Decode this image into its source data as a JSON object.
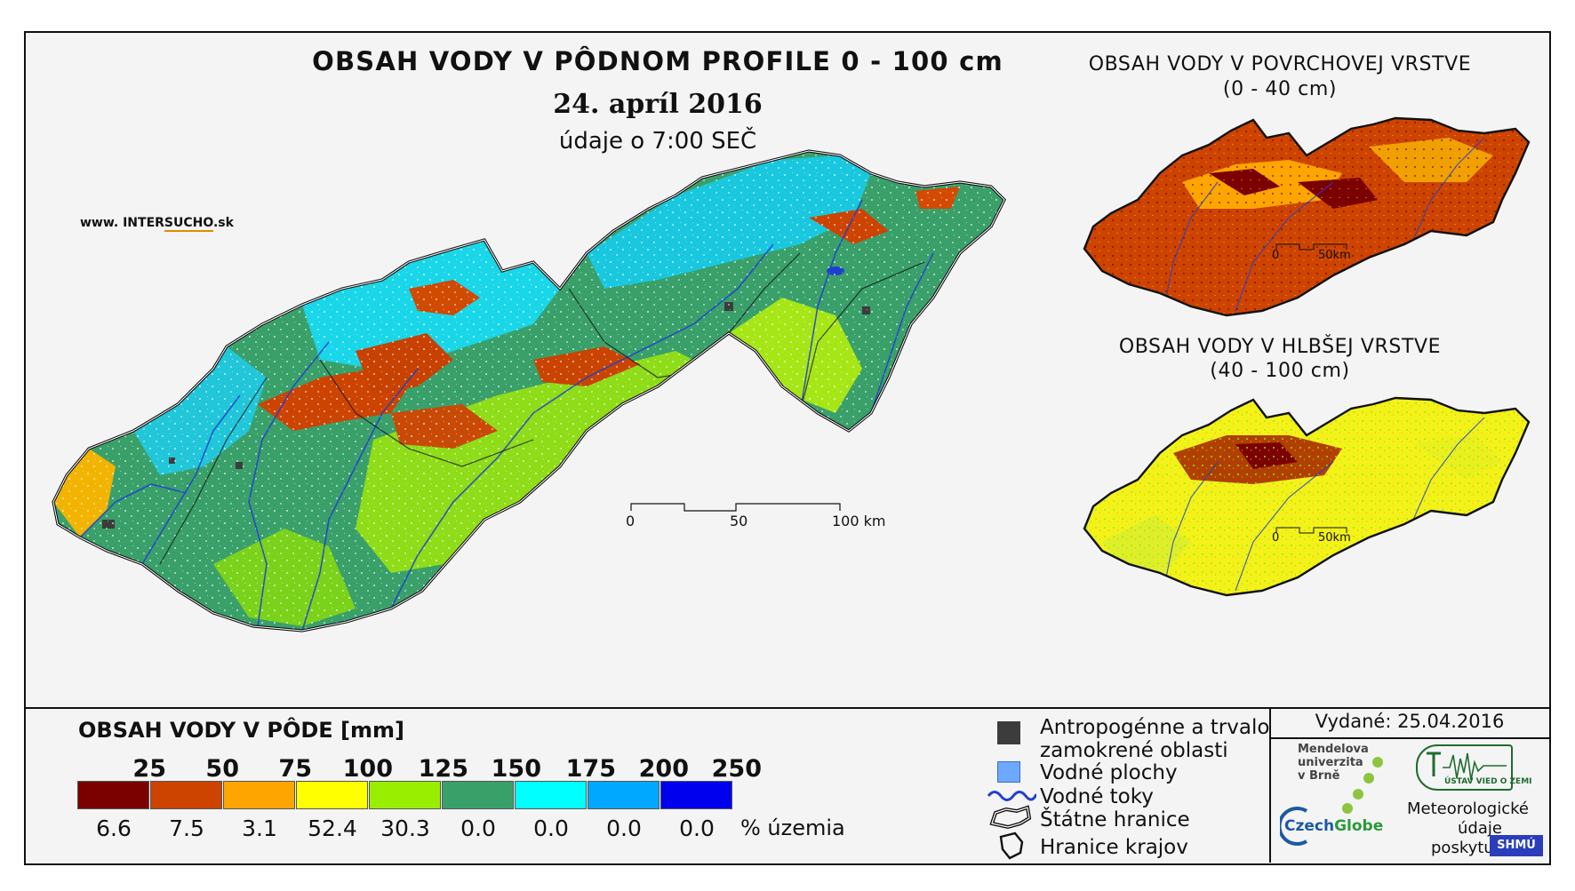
{
  "header": {
    "title": "OBSAH VODY V PÔDNOM PROFILE 0 - 100 cm",
    "date": "24. apríl 2016",
    "time_note": "údaje o 7:00 SEČ",
    "website_prefix": "www. INTER",
    "website_highlight": "SUCHO",
    "website_suffix": ".sk"
  },
  "insets": {
    "surface_title": "OBSAH VODY V POVRCHOVEJ VRSTVE",
    "surface_range": "(0 - 40 cm)",
    "deep_title": "OBSAH VODY V HLBŠEJ VRSTVE",
    "deep_range": "(40 - 100 cm)",
    "scale_zero": "0",
    "scale_end": "50km"
  },
  "main_scale": {
    "zero": "0",
    "mid": "50",
    "end": "100 km"
  },
  "legend": {
    "title": "OBSAH VODY V PÔDE [mm]",
    "pct_unit": "% územia",
    "classes": [
      {
        "upper": "25",
        "color": "#7b0000",
        "percent": "6.6"
      },
      {
        "upper": "50",
        "color": "#cc4400",
        "percent": "7.5"
      },
      {
        "upper": "75",
        "color": "#ffa500",
        "percent": "3.1"
      },
      {
        "upper": "100",
        "color": "#ffff00",
        "percent": "52.4"
      },
      {
        "upper": "125",
        "color": "#99ee00",
        "percent": "30.3"
      },
      {
        "upper": "150",
        "color": "#3aa06a",
        "percent": "0.0"
      },
      {
        "upper": "175",
        "color": "#00ffff",
        "percent": "0.0"
      },
      {
        "upper": "200",
        "color": "#00a8ff",
        "percent": "0.0"
      },
      {
        "upper": "250",
        "color": "#0000ee",
        "percent": "0.0"
      }
    ]
  },
  "key": {
    "anthropogenic_line1": "Antropogénne a trvalo",
    "anthropogenic_line2": "zamokrené oblasti",
    "water_bodies": "Vodné plochy",
    "rivers": "Vodné toky",
    "state_border": "Štátne hranice",
    "region_border": "Hranice krajov",
    "anthropogenic_color": "#3c3c3c",
    "water_body_color": "#6fa8ff",
    "river_color": "#1f3fd0"
  },
  "info": {
    "issued": "Vydané: 25.04.2016",
    "mendel_line1": "Mendelova",
    "mendel_line2": "univerzita",
    "mendel_line3": "v Brně",
    "czechglobe_a": "Czech",
    "czechglobe_b": "Globe",
    "uvoz": "ÚSTAV VIED O ZEMI",
    "meteo_line1": "Meteorologické",
    "meteo_line2": "údaje",
    "meteo_line3": "poskytuje:",
    "shmu": "SHMÚ"
  }
}
